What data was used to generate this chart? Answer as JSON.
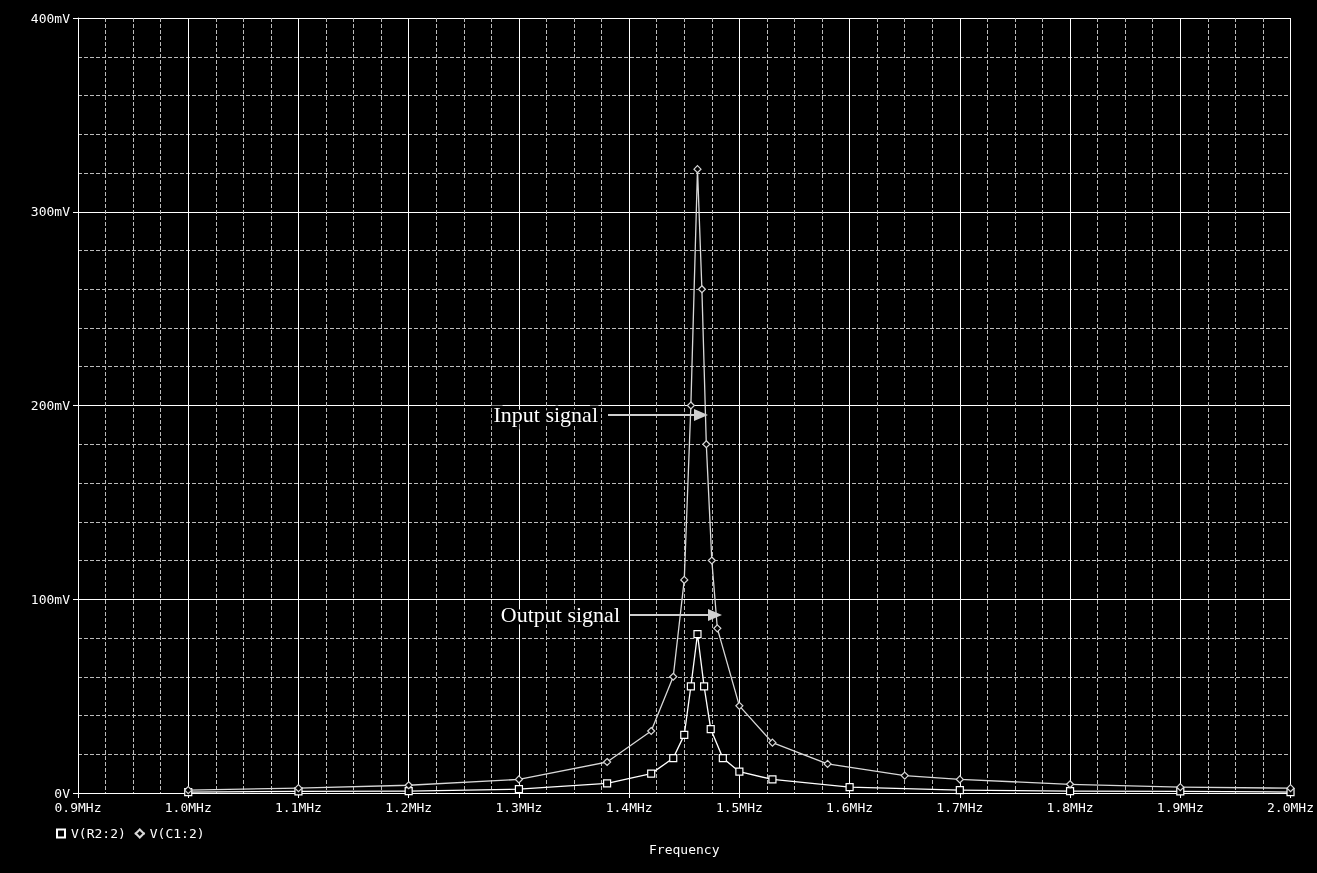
{
  "chart_data": {
    "type": "line",
    "xlabel": "Frequency",
    "xlim": [
      0.9,
      2.0
    ],
    "xticks": [
      {
        "value": 0.9,
        "label": "0.9MHz"
      },
      {
        "value": 1.0,
        "label": "1.0MHz"
      },
      {
        "value": 1.1,
        "label": "1.1MHz"
      },
      {
        "value": 1.2,
        "label": "1.2MHz"
      },
      {
        "value": 1.3,
        "label": "1.3MHz"
      },
      {
        "value": 1.4,
        "label": "1.4MHz"
      },
      {
        "value": 1.5,
        "label": "1.5MHz"
      },
      {
        "value": 1.6,
        "label": "1.6MHz"
      },
      {
        "value": 1.7,
        "label": "1.7MHz"
      },
      {
        "value": 1.8,
        "label": "1.8MHz"
      },
      {
        "value": 1.9,
        "label": "1.9MHz"
      },
      {
        "value": 2.0,
        "label": "2.0MHz"
      }
    ],
    "ylim": [
      0,
      400
    ],
    "yticks": [
      {
        "value": 0,
        "label": "0V"
      },
      {
        "value": 100,
        "label": "100mV"
      },
      {
        "value": 200,
        "label": "200mV"
      },
      {
        "value": 300,
        "label": "300mV"
      },
      {
        "value": 400,
        "label": "400mV"
      }
    ],
    "grid": true,
    "legend": "bottom left",
    "series": [
      {
        "name": "V(R2:2)",
        "color": "#ffffff",
        "marker": "square",
        "x": [
          1.0,
          1.1,
          1.2,
          1.3,
          1.38,
          1.42,
          1.44,
          1.45,
          1.456,
          1.462,
          1.468,
          1.474,
          1.485,
          1.5,
          1.53,
          1.6,
          1.7,
          1.8,
          1.9,
          2.0
        ],
        "values": [
          0.5,
          0.8,
          1,
          2,
          5,
          10,
          18,
          30,
          55,
          82,
          55,
          33,
          18,
          11,
          7,
          3,
          1.5,
          1,
          0.8,
          0.5
        ]
      },
      {
        "name": "V(C1:2)",
        "color": "#d8d8d8",
        "marker": "diamond",
        "x": [
          1.0,
          1.1,
          1.2,
          1.3,
          1.38,
          1.42,
          1.44,
          1.45,
          1.456,
          1.462,
          1.466,
          1.47,
          1.475,
          1.48,
          1.5,
          1.53,
          1.58,
          1.65,
          1.7,
          1.8,
          1.9,
          2.0
        ],
        "values": [
          1.5,
          2.5,
          4,
          7,
          16,
          32,
          60,
          110,
          200,
          322,
          260,
          180,
          120,
          85,
          45,
          26,
          15,
          9,
          7,
          4.5,
          3,
          2.5
        ]
      }
    ],
    "annotations": [
      "Input signal",
      "Output signal"
    ]
  }
}
